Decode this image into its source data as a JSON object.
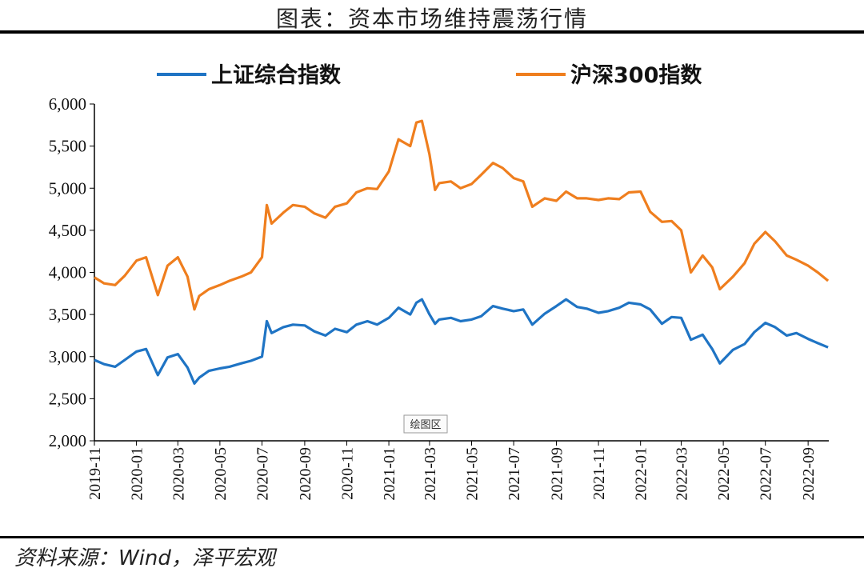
{
  "header": {
    "title": "图表：资本市场维持震荡行情"
  },
  "footer": {
    "source": "资料来源：Wind，泽平宏观"
  },
  "plot_area_tag": "绘图区",
  "chart_data": {
    "type": "line",
    "title": "图表：资本市场维持震荡行情",
    "xlabel": "",
    "ylabel": "",
    "ylim": [
      2000,
      6000
    ],
    "yticks": [
      2000,
      2500,
      3000,
      3500,
      4000,
      4500,
      5000,
      5500,
      6000
    ],
    "ytick_labels": [
      "2,000",
      "2,500",
      "3,000",
      "3,500",
      "4,000",
      "4,500",
      "5,000",
      "5,500",
      "6,000"
    ],
    "xtick_labels": [
      "2019-11",
      "2020-01",
      "2020-03",
      "2020-05",
      "2020-07",
      "2020-09",
      "2020-11",
      "2021-01",
      "2021-03",
      "2021-05",
      "2021-07",
      "2021-09",
      "2021-11",
      "2022-01",
      "2022-03",
      "2022-05",
      "2022-07",
      "2022-09"
    ],
    "legend_position": "top",
    "grid": false,
    "x": [
      "2019-11-01",
      "2019-11-15",
      "2019-12-01",
      "2019-12-15",
      "2020-01-01",
      "2020-01-15",
      "2020-02-01",
      "2020-02-15",
      "2020-03-01",
      "2020-03-15",
      "2020-03-25",
      "2020-04-01",
      "2020-04-15",
      "2020-05-01",
      "2020-05-15",
      "2020-06-01",
      "2020-06-15",
      "2020-07-01",
      "2020-07-08",
      "2020-07-15",
      "2020-08-01",
      "2020-08-15",
      "2020-09-01",
      "2020-09-15",
      "2020-10-01",
      "2020-10-15",
      "2020-11-01",
      "2020-11-15",
      "2020-12-01",
      "2020-12-15",
      "2021-01-01",
      "2021-01-15",
      "2021-02-01",
      "2021-02-10",
      "2021-02-18",
      "2021-03-01",
      "2021-03-09",
      "2021-03-15",
      "2021-04-01",
      "2021-04-15",
      "2021-05-01",
      "2021-05-15",
      "2021-06-01",
      "2021-06-15",
      "2021-07-01",
      "2021-07-15",
      "2021-07-28",
      "2021-08-15",
      "2021-09-01",
      "2021-09-15",
      "2021-10-01",
      "2021-10-15",
      "2021-11-01",
      "2021-11-15",
      "2021-12-01",
      "2021-12-15",
      "2022-01-01",
      "2022-01-15",
      "2022-02-01",
      "2022-02-15",
      "2022-03-01",
      "2022-03-15",
      "2022-04-01",
      "2022-04-15",
      "2022-04-26",
      "2022-05-15",
      "2022-06-01",
      "2022-06-15",
      "2022-07-01",
      "2022-07-15",
      "2022-08-01",
      "2022-08-15",
      "2022-09-01",
      "2022-09-15",
      "2022-09-30"
    ],
    "series": [
      {
        "name": "上证综合指数",
        "color": "#1f74c4",
        "values": [
          2960,
          2910,
          2880,
          2960,
          3060,
          3090,
          2780,
          2990,
          3030,
          2870,
          2680,
          2750,
          2830,
          2860,
          2880,
          2920,
          2950,
          3000,
          3420,
          3280,
          3350,
          3380,
          3370,
          3300,
          3250,
          3330,
          3290,
          3380,
          3420,
          3380,
          3460,
          3580,
          3500,
          3640,
          3680,
          3500,
          3390,
          3440,
          3460,
          3420,
          3440,
          3480,
          3600,
          3570,
          3540,
          3560,
          3380,
          3510,
          3600,
          3680,
          3590,
          3570,
          3520,
          3540,
          3580,
          3640,
          3620,
          3560,
          3390,
          3470,
          3460,
          3200,
          3260,
          3090,
          2920,
          3080,
          3150,
          3290,
          3400,
          3350,
          3250,
          3280,
          3210,
          3160,
          3110
        ]
      },
      {
        "name": "沪深300指数",
        "color": "#ef7e1e",
        "values": [
          3940,
          3870,
          3850,
          3960,
          4140,
          4180,
          3730,
          4080,
          4180,
          3950,
          3560,
          3720,
          3800,
          3850,
          3900,
          3950,
          4000,
          4180,
          4800,
          4580,
          4710,
          4800,
          4780,
          4700,
          4650,
          4780,
          4820,
          4950,
          5000,
          4990,
          5200,
          5580,
          5500,
          5780,
          5800,
          5400,
          4980,
          5060,
          5080,
          5000,
          5050,
          5160,
          5300,
          5240,
          5120,
          5080,
          4780,
          4880,
          4850,
          4960,
          4880,
          4880,
          4860,
          4880,
          4870,
          4950,
          4960,
          4720,
          4600,
          4610,
          4500,
          4000,
          4200,
          4060,
          3800,
          3950,
          4110,
          4340,
          4480,
          4370,
          4200,
          4150,
          4080,
          4000,
          3900
        ]
      }
    ]
  }
}
